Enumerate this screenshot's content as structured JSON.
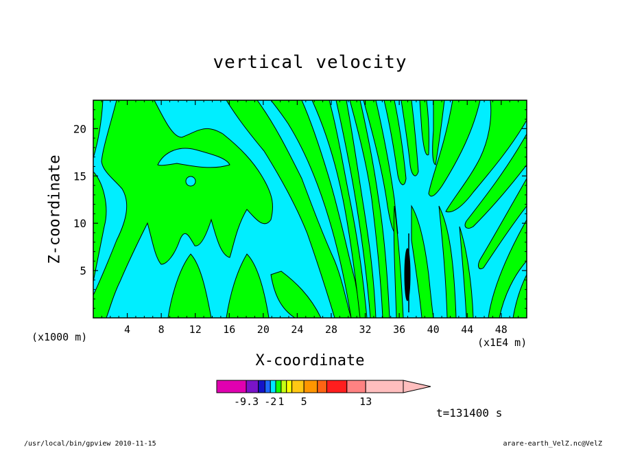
{
  "chart_data": {
    "type": "heatmap",
    "title": "vertical velocity",
    "xlabel": "X-coordinate",
    "ylabel": "Z-coordinate",
    "x_unit_left": "(x1000 m)",
    "x_unit_right": "(x1E4 m)",
    "time_label": "t=131400 s",
    "xlim": [
      0,
      51
    ],
    "ylim": [
      0,
      23
    ],
    "x_ticks": [
      4,
      8,
      12,
      16,
      20,
      24,
      28,
      32,
      36,
      40,
      44,
      48
    ],
    "y_ticks": [
      5,
      10,
      15,
      20
    ],
    "dominant_field_colors": {
      "negative_small": "#00eeff",
      "positive_small": "#00ff00"
    },
    "colorbar": {
      "colors": [
        "#e000b0",
        "#7a14c8",
        "#1414c8",
        "#1e6aff",
        "#00e8ff",
        "#14ff00",
        "#c8ff14",
        "#ffff00",
        "#ffc814",
        "#ff9600",
        "#ff6414",
        "#ff1e1e",
        "#ff8282",
        "#ffbebe"
      ],
      "labels": [
        {
          "text": "-9.3",
          "index": 0
        },
        {
          "text": "-2",
          "index": 3
        },
        {
          "text": "1",
          "index": 5
        },
        {
          "text": "5",
          "index": 8
        },
        {
          "text": "13",
          "index": 12
        }
      ]
    }
  },
  "footer": {
    "left": "/usr/local/bin/gpview   2010-11-15",
    "right": "arare-earth_VelZ.nc@VelZ"
  }
}
